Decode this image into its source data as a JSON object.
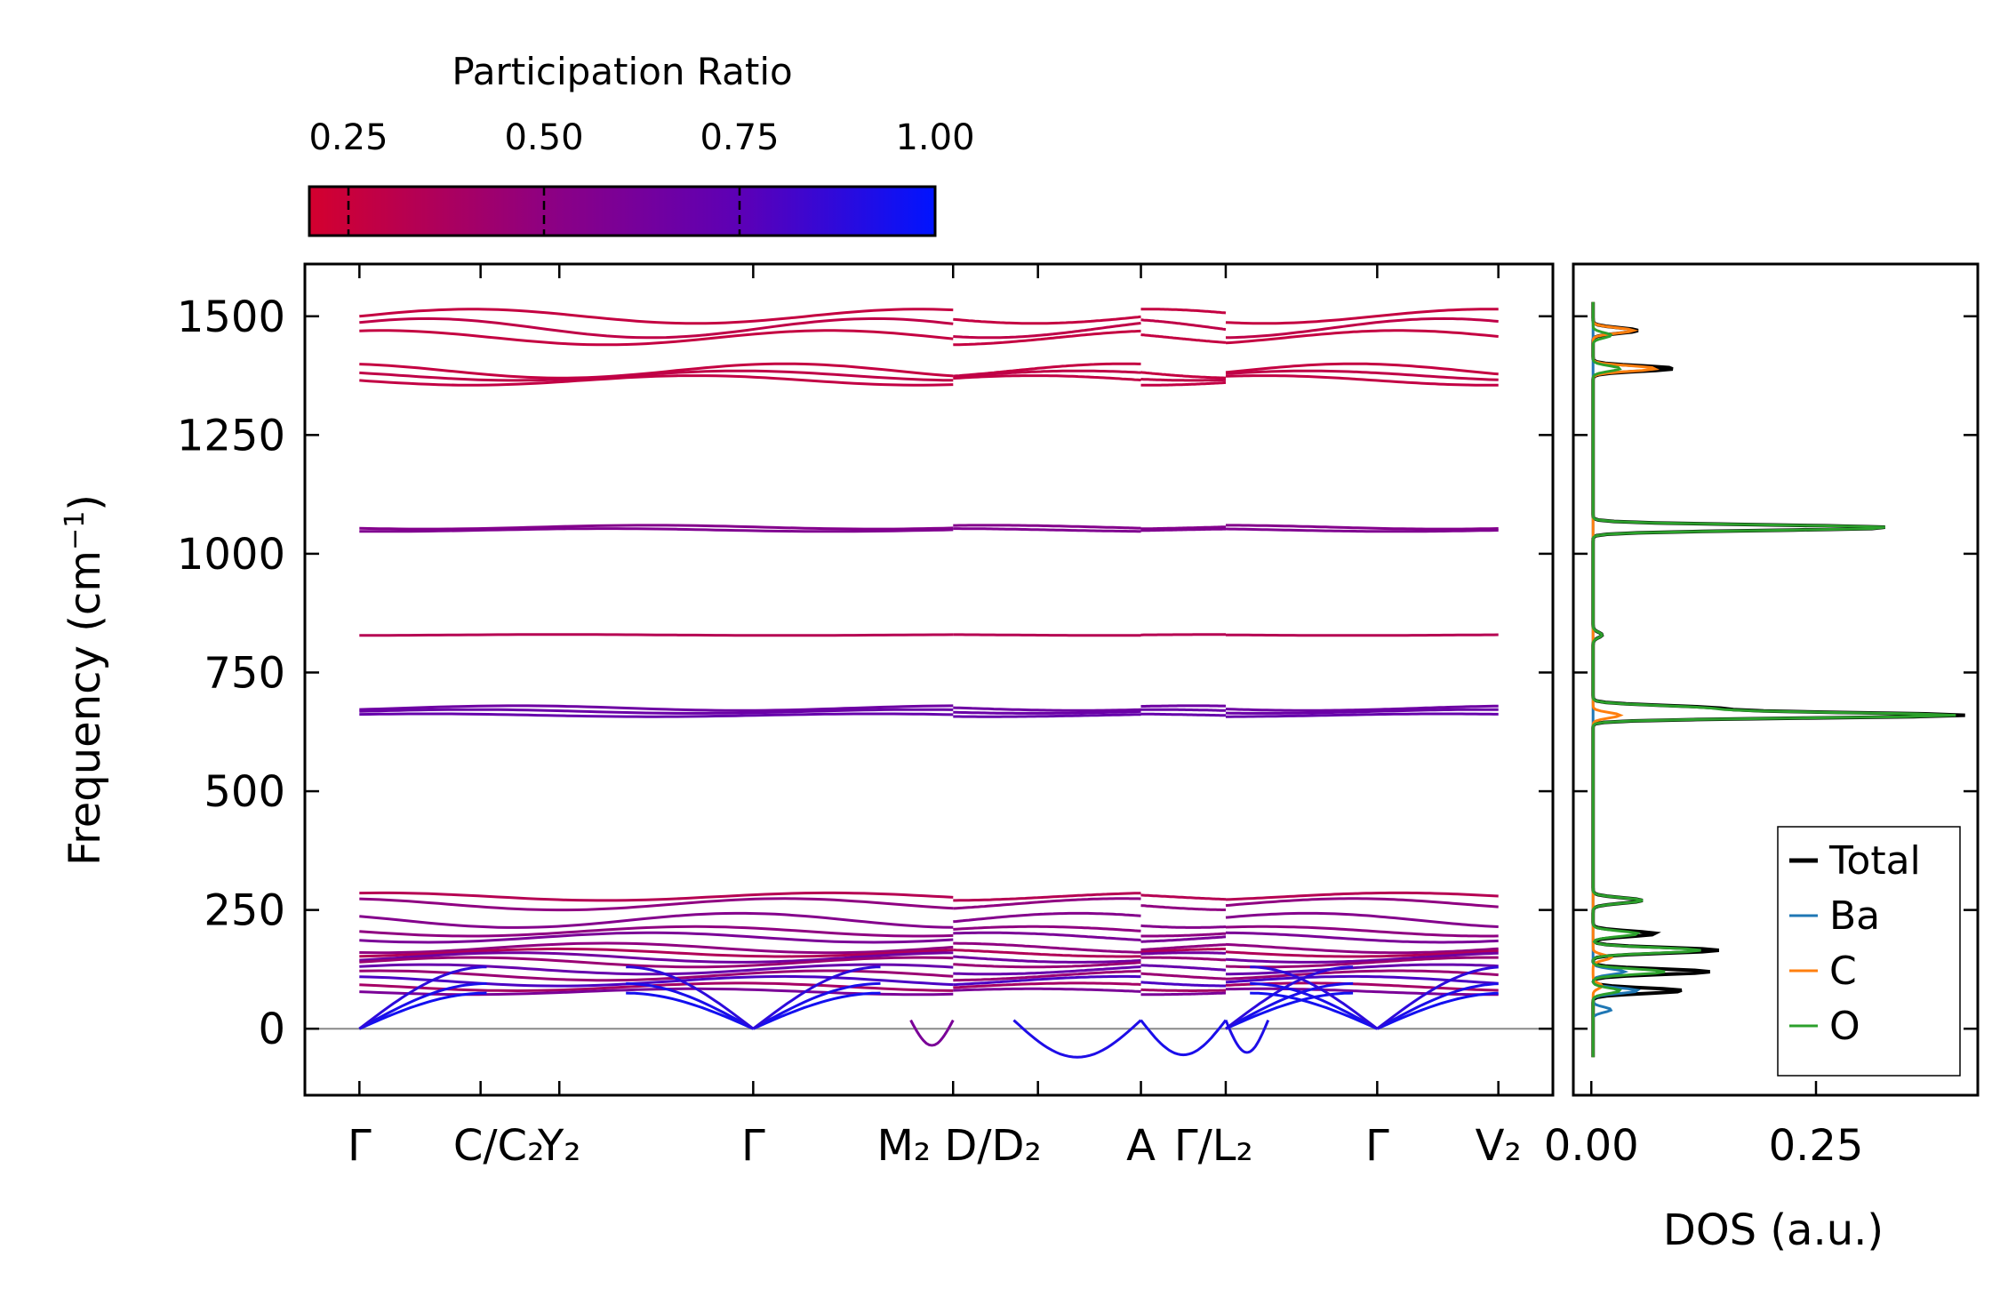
{
  "chart_data": [
    {
      "type": "line",
      "name": "phonon-dispersion",
      "title": "",
      "ylabel_base": "Frequency (cm",
      "ylabel_sup": "−1",
      "ylabel_end": ")",
      "ylim": [
        -140,
        1610
      ],
      "yticks": [
        0,
        250,
        500,
        750,
        1000,
        1250,
        1500
      ],
      "zero_line": true,
      "xticks": [
        {
          "pos": 0,
          "label": "Γ"
        },
        {
          "pos": 1,
          "label": "C/C₂"
        },
        {
          "pos": 1.65,
          "label": "Y₂"
        },
        {
          "pos": 3.25,
          "label": "Γ"
        },
        {
          "pos": 4.9,
          "label": "M₂D/D₂"
        },
        {
          "pos": 5.6,
          "label": ""
        },
        {
          "pos": 6.45,
          "label": "A"
        },
        {
          "pos": 7.15,
          "label": "Γ/L₂"
        },
        {
          "pos": 8.4,
          "label": "Γ"
        },
        {
          "pos": 9.4,
          "label": "V₂"
        }
      ],
      "xrange": [
        -0.45,
        9.85
      ],
      "segments": [
        {
          "x0": 0,
          "x1": 4.9,
          "y0": 0,
          "gamma_at": [
            0,
            3.25
          ]
        },
        {
          "x0": 4.9,
          "x1": 6.45,
          "y0": 40,
          "gamma_at": []
        },
        {
          "x0": 6.45,
          "x1": 7.15,
          "y0": 40,
          "gamma_at": []
        },
        {
          "x0": 7.15,
          "x1": 9.4,
          "y0": 0,
          "gamma_at": [
            7.15,
            8.4
          ]
        }
      ],
      "bands": [
        {
          "level": 1500,
          "amp": 15,
          "pr": 0.27
        },
        {
          "level": 1475,
          "amp": 20,
          "pr": 0.29
        },
        {
          "level": 1455,
          "amp": 15,
          "pr": 0.27
        },
        {
          "level": 1385,
          "amp": 15,
          "pr": 0.27
        },
        {
          "level": 1375,
          "amp": 10,
          "pr": 0.29
        },
        {
          "level": 1365,
          "amp": 10,
          "pr": 0.28
        },
        {
          "level": 1056,
          "amp": 4,
          "pr": 0.55
        },
        {
          "level": 1050,
          "amp": 3,
          "pr": 0.57
        },
        {
          "level": 829,
          "amp": 1,
          "pr": 0.33
        },
        {
          "level": 675,
          "amp": 5,
          "pr": 0.66
        },
        {
          "level": 668,
          "amp": 4,
          "pr": 0.68
        },
        {
          "level": 660,
          "amp": 3,
          "pr": 0.7
        },
        {
          "level": 278,
          "amp": 8,
          "pr": 0.33
        },
        {
          "level": 262,
          "amp": 12,
          "pr": 0.5
        },
        {
          "level": 228,
          "amp": 15,
          "pr": 0.55
        },
        {
          "level": 205,
          "amp": 10,
          "pr": 0.5
        },
        {
          "level": 192,
          "amp": 10,
          "pr": 0.6
        },
        {
          "level": 170,
          "amp": 10,
          "pr": 0.5
        },
        {
          "level": 160,
          "amp": 8,
          "pr": 0.35
        },
        {
          "level": 150,
          "amp": 10,
          "pr": 0.65
        },
        {
          "level": 140,
          "amp": 10,
          "pr": 0.45
        },
        {
          "level": 125,
          "amp": 10,
          "pr": 0.7
        },
        {
          "level": 112,
          "amp": 10,
          "pr": 0.45
        },
        {
          "level": 100,
          "amp": 10,
          "pr": 0.8
        },
        {
          "level": 88,
          "amp": 8,
          "pr": 0.4
        },
        {
          "level": 78,
          "amp": 6,
          "pr": 0.6
        }
      ],
      "acoustic": [
        {
          "top": 75,
          "pr": 0.95
        },
        {
          "top": 95,
          "pr": 0.93
        },
        {
          "top": 130,
          "pr": 0.88
        }
      ],
      "imaginary_dips": [
        {
          "x0": 4.55,
          "x1": 4.9,
          "depth": -35,
          "pr": 0.6
        },
        {
          "x0": 5.4,
          "x1": 6.45,
          "depth": -60,
          "pr": 0.92
        },
        {
          "x0": 6.45,
          "x1": 7.15,
          "depth": -55,
          "pr": 0.93
        },
        {
          "x0": 7.15,
          "x1": 7.5,
          "depth": -50,
          "pr": 0.92
        }
      ]
    },
    {
      "type": "line",
      "name": "density-of-states",
      "xlabel": "DOS (a.u.)",
      "xlim": [
        -0.02,
        0.43
      ],
      "xticks": [
        0.0,
        0.25
      ],
      "xtick_labels": [
        "0.00",
        "0.25"
      ],
      "ylim": [
        -140,
        1610
      ],
      "legend_position": "lower-right",
      "series": [
        {
          "name": "Total",
          "color": "#000000",
          "peaks": [
            [
              1470,
              0.05
            ],
            [
              1390,
              0.09
            ],
            [
              1055,
              0.33
            ],
            [
              829,
              0.01
            ],
            [
              660,
              0.41
            ],
            [
              675,
              0.13
            ],
            [
              270,
              0.055
            ],
            [
              200,
              0.07
            ],
            [
              165,
              0.14
            ],
            [
              120,
              0.13
            ],
            [
              80,
              0.1
            ]
          ]
        },
        {
          "name": "Ba",
          "color": "#1f77b4",
          "peaks": [
            [
              120,
              0.035
            ],
            [
              80,
              0.05
            ],
            [
              40,
              0.02
            ]
          ]
        },
        {
          "name": "C",
          "color": "#ff7f0e",
          "peaks": [
            [
              1470,
              0.045
            ],
            [
              1390,
              0.07
            ],
            [
              1055,
              0.0
            ],
            [
              660,
              0.03
            ],
            [
              150,
              0.02
            ],
            [
              90,
              0.01
            ]
          ]
        },
        {
          "name": "O",
          "color": "#2ca02c",
          "peaks": [
            [
              1460,
              0.02
            ],
            [
              1390,
              0.03
            ],
            [
              1055,
              0.33
            ],
            [
              829,
              0.01
            ],
            [
              660,
              0.4
            ],
            [
              675,
              0.12
            ],
            [
              270,
              0.055
            ],
            [
              200,
              0.05
            ],
            [
              165,
              0.12
            ],
            [
              120,
              0.08
            ],
            [
              80,
              0.03
            ]
          ]
        }
      ]
    }
  ],
  "colorbar": {
    "title": "Participation Ratio",
    "min": 0.2,
    "max": 1.0,
    "ticks": [
      0.25,
      0.5,
      0.75,
      1.0
    ],
    "tick_labels": [
      "0.25",
      "0.50",
      "0.75",
      "1.00"
    ],
    "color_low": "#d4002e",
    "color_high": "#0014ff"
  },
  "ytick_labels": [
    "0",
    "250",
    "500",
    "750",
    "1000",
    "1250",
    "1500"
  ],
  "xtick_labels": [
    "Γ",
    "C/C₂",
    "Y₂",
    "Γ",
    "M₂ D/D₂",
    "A",
    "Γ/L₂",
    "Γ",
    "V₂"
  ],
  "legend": {
    "items": [
      "Total",
      "Ba",
      "C",
      "O"
    ]
  }
}
